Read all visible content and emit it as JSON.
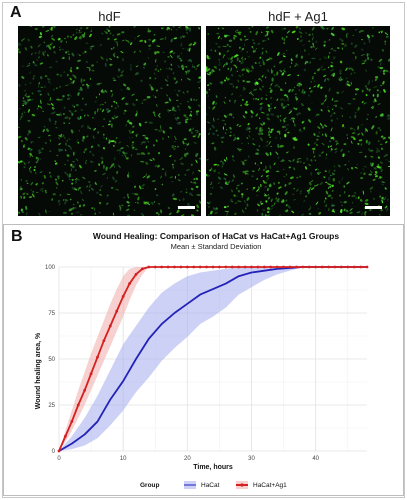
{
  "panel_a": {
    "letter": "A",
    "images": [
      {
        "title": "hdF"
      },
      {
        "title": "hdF + Ag1"
      }
    ]
  },
  "panel_b": {
    "letter": "B"
  },
  "chart_data": {
    "type": "line",
    "title": "Wound Healing: Comparison of HaCat vs HaCat+Ag1 Groups",
    "subtitle": "Mean ± Standard Deviation",
    "xlabel": "Time, hours",
    "ylabel": "Wound healing area, %",
    "xlim": [
      0,
      48
    ],
    "ylim": [
      0,
      100
    ],
    "xticks": [
      0,
      10,
      20,
      30,
      40
    ],
    "yticks": [
      0,
      25,
      50,
      75,
      100
    ],
    "grid": true,
    "legend": {
      "title": "Group",
      "placement": "bottom",
      "entries": [
        "HaCat",
        "HaCat+Ag1"
      ]
    },
    "series": [
      {
        "name": "HaCat",
        "color": "#2323b8",
        "band_color": "#aab2ee",
        "x": [
          0,
          2,
          4,
          6,
          8,
          10,
          12,
          14,
          16,
          18,
          20,
          22,
          24,
          26,
          28,
          30,
          32,
          34,
          36,
          38,
          40,
          42,
          44,
          46,
          48
        ],
        "y": [
          0,
          4,
          9,
          16,
          28,
          38,
          50,
          61,
          69,
          75,
          80,
          85,
          88,
          91,
          95,
          97,
          98,
          99,
          99.5,
          100,
          100,
          100,
          100,
          100,
          100
        ],
        "lower": [
          0,
          1,
          3,
          7,
          14,
          22,
          32,
          40,
          49,
          56,
          62,
          69,
          73,
          78,
          85,
          89,
          93,
          96,
          98,
          100,
          100,
          100,
          100,
          100,
          100
        ],
        "upper": [
          0,
          8,
          18,
          30,
          44,
          58,
          68,
          78,
          86,
          91,
          95,
          97,
          98,
          99,
          100,
          100,
          100,
          100,
          100,
          100,
          100,
          100,
          100,
          100,
          100
        ]
      },
      {
        "name": "HaCat+Ag1",
        "color": "#d42020",
        "band_color": "#f2b0b0",
        "x": [
          0,
          1,
          2,
          3,
          4,
          5,
          6,
          7,
          8,
          9,
          10,
          11,
          12,
          13,
          14,
          15,
          16,
          17,
          18,
          19,
          20,
          21,
          22,
          23,
          24,
          25,
          26,
          27,
          28,
          29,
          30,
          31,
          32,
          33,
          34,
          35,
          36,
          37,
          38,
          39,
          40,
          41,
          42,
          43,
          44,
          45,
          46,
          47,
          48
        ],
        "y": [
          0,
          8,
          16,
          25,
          33,
          42,
          51,
          60,
          68,
          76,
          84,
          91,
          96,
          99,
          100,
          100,
          100,
          100,
          100,
          100,
          100,
          100,
          100,
          100,
          100,
          100,
          100,
          100,
          100,
          100,
          100,
          100,
          100,
          100,
          100,
          100,
          100,
          100,
          100,
          100,
          100,
          100,
          100,
          100,
          100,
          100,
          100,
          100,
          100
        ],
        "lower": [
          0,
          5,
          11,
          18,
          25,
          33,
          41,
          49,
          57,
          65,
          73,
          82,
          90,
          96,
          100,
          100,
          100,
          100,
          100,
          100,
          100,
          100,
          100,
          100,
          100,
          100,
          100,
          100,
          100,
          100,
          100,
          100,
          100,
          100,
          100,
          100,
          100,
          100,
          100,
          100,
          100,
          100,
          100,
          100,
          100,
          100,
          100,
          100,
          100
        ],
        "upper": [
          0,
          11,
          22,
          33,
          43,
          53,
          62,
          71,
          80,
          88,
          95,
          99,
          100,
          100,
          100,
          100,
          100,
          100,
          100,
          100,
          100,
          100,
          100,
          100,
          100,
          100,
          100,
          100,
          100,
          100,
          100,
          100,
          100,
          100,
          100,
          100,
          100,
          100,
          100,
          100,
          100,
          100,
          100,
          100,
          100,
          100,
          100,
          100,
          100
        ]
      }
    ]
  }
}
